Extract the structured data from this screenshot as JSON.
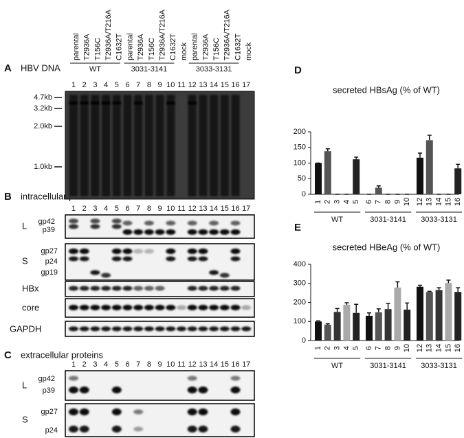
{
  "lanes": [
    "1",
    "2",
    "3",
    "4",
    "5",
    "6",
    "7",
    "8",
    "9",
    "10",
    "11",
    "12",
    "13",
    "14",
    "15",
    "16",
    "17"
  ],
  "lane_headers": [
    "parental",
    "T2936A",
    "T156C",
    "T2936A/T216A",
    "C1632T",
    "mock"
  ],
  "groups": [
    "WT",
    "3031-3141",
    "3033-3131"
  ],
  "panel_a": {
    "letter": "A",
    "title": "HBV DNA",
    "markers": [
      "4.7kb",
      "3.2kb",
      "2.0kb",
      "1.0kb"
    ]
  },
  "panel_b": {
    "letter": "B",
    "title": "intracellular proteins",
    "L": {
      "label": "L",
      "bands": [
        "gp42",
        "p39"
      ]
    },
    "S": {
      "label": "S",
      "bands": [
        "gp27",
        "p24",
        "gp19"
      ]
    },
    "HBx": "HBx",
    "core": "core",
    "GAPDH": "GAPDH"
  },
  "panel_c": {
    "letter": "C",
    "title": "extracellular proteins",
    "L": {
      "label": "L",
      "bands": [
        "gp42",
        "p39"
      ]
    },
    "S": {
      "label": "S",
      "bands": [
        "gp27",
        "p24"
      ]
    }
  },
  "chart_data": [
    {
      "type": "bar",
      "letter": "D",
      "title": "secreted HBsAg (% of WT)",
      "categories": [
        "1",
        "2",
        "3",
        "4",
        "5",
        "6",
        "7",
        "8",
        "9",
        "10",
        "12",
        "13",
        "14",
        "15",
        "16"
      ],
      "values": [
        100,
        138,
        0,
        0,
        112,
        0,
        21,
        0,
        0,
        0,
        117,
        173,
        0,
        0,
        83
      ],
      "errors": [
        0,
        8,
        0,
        0,
        7,
        0,
        6,
        0,
        0,
        0,
        15,
        16,
        0,
        0,
        13
      ],
      "colors": [
        "#111111",
        "#555555",
        "#333333",
        "#aaaaaa",
        "#222222",
        "#111111",
        "#555555",
        "#333333",
        "#aaaaaa",
        "#222222",
        "#111111",
        "#555555",
        "#333333",
        "#aaaaaa",
        "#222222"
      ],
      "group_labels": [
        "WT",
        "3031-3141",
        "3033-3131"
      ],
      "ylim": [
        0,
        200
      ],
      "yticks": [
        0,
        50,
        100,
        150,
        200
      ]
    },
    {
      "type": "bar",
      "letter": "E",
      "title": "secreted HBeAg (% of WT)",
      "categories": [
        "1",
        "2",
        "3",
        "4",
        "5",
        "6",
        "7",
        "8",
        "9",
        "10",
        "12",
        "13",
        "14",
        "15",
        "16"
      ],
      "values": [
        100,
        83,
        150,
        188,
        145,
        130,
        148,
        165,
        278,
        162,
        282,
        255,
        265,
        302,
        255
      ],
      "errors": [
        3,
        5,
        18,
        10,
        45,
        15,
        18,
        30,
        30,
        35,
        8,
        3,
        12,
        15,
        22
      ],
      "colors": [
        "#111111",
        "#555555",
        "#333333",
        "#aaaaaa",
        "#222222",
        "#111111",
        "#555555",
        "#333333",
        "#aaaaaa",
        "#222222",
        "#111111",
        "#555555",
        "#333333",
        "#aaaaaa",
        "#222222"
      ],
      "group_labels": [
        "WT",
        "3031-3141",
        "3033-3131"
      ],
      "ylim": [
        0,
        400
      ],
      "yticks": [
        0,
        100,
        200,
        300,
        400
      ]
    }
  ]
}
